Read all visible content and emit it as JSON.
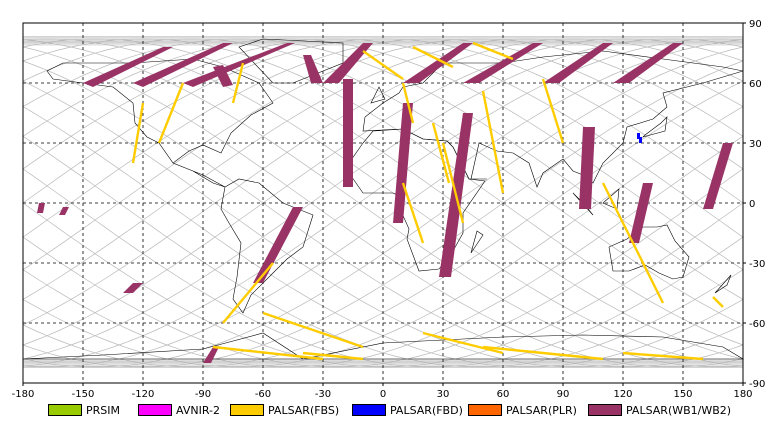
{
  "map": {
    "projection": "equirectangular",
    "background": "#ffffff",
    "lon_range": [
      -180,
      180
    ],
    "lat_range": [
      -90,
      90
    ],
    "x_ticks": [
      "-180",
      "-150",
      "-120",
      "-90",
      "-60",
      "-30",
      "0",
      "30",
      "60",
      "90",
      "120",
      "150",
      "180"
    ],
    "y_ticks": [
      "90",
      "60",
      "30",
      "0",
      "-30",
      "-60",
      "-90"
    ],
    "grid": "dashed black",
    "coastline_color": "#000000",
    "orbit_track_color": "#b9b9b9"
  },
  "legend": [
    {
      "label": "PRSIM",
      "color": "#99cc00"
    },
    {
      "label": "AVNIR-2",
      "color": "#ff00ff"
    },
    {
      "label": "PALSAR(FBS)",
      "color": "#ffcc00"
    },
    {
      "label": "PALSAR(FBD)",
      "color": "#0000ff"
    },
    {
      "label": "PALSAR(PLR)",
      "color": "#ff6600"
    },
    {
      "label": "PALSAR(WB1/WB2)",
      "color": "#993366"
    }
  ],
  "coverage": {
    "wb_swaths": [
      [
        [
          -110,
          78
        ],
        [
          -150,
          60
        ],
        [
          -145,
          58
        ],
        [
          -105,
          78
        ]
      ],
      [
        [
          -80,
          80
        ],
        [
          -125,
          60
        ],
        [
          -120,
          58
        ],
        [
          -75,
          80
        ]
      ],
      [
        [
          -48,
          80
        ],
        [
          -100,
          60
        ],
        [
          -95,
          58
        ],
        [
          -44,
          80
        ]
      ],
      [
        [
          -40,
          74
        ],
        [
          -36,
          60
        ],
        [
          -30,
          60
        ],
        [
          -36,
          74
        ]
      ],
      [
        [
          -10,
          80
        ],
        [
          -30,
          60
        ],
        [
          -22,
          60
        ],
        [
          -5,
          80
        ]
      ],
      [
        [
          40,
          80
        ],
        [
          10,
          60
        ],
        [
          18,
          60
        ],
        [
          45,
          80
        ]
      ],
      [
        [
          75,
          80
        ],
        [
          40,
          60
        ],
        [
          48,
          60
        ],
        [
          80,
          80
        ]
      ],
      [
        [
          110,
          80
        ],
        [
          80,
          60
        ],
        [
          88,
          60
        ],
        [
          115,
          80
        ]
      ],
      [
        [
          145,
          80
        ],
        [
          115,
          60
        ],
        [
          123,
          60
        ],
        [
          150,
          80
        ]
      ],
      [
        [
          -85,
          68
        ],
        [
          -80,
          58
        ],
        [
          -75,
          59
        ],
        [
          -80,
          69
        ]
      ],
      [
        [
          -20,
          62
        ],
        [
          -20,
          8
        ],
        [
          -15,
          8
        ],
        [
          -15,
          62
        ]
      ],
      [
        [
          10,
          50
        ],
        [
          5,
          -10
        ],
        [
          10,
          -10
        ],
        [
          15,
          50
        ]
      ],
      [
        [
          40,
          45
        ],
        [
          28,
          -37
        ],
        [
          34,
          -37
        ],
        [
          45,
          45
        ]
      ],
      [
        [
          -45,
          -2
        ],
        [
          -65,
          -40
        ],
        [
          -60,
          -40
        ],
        [
          -40,
          -2
        ]
      ],
      [
        [
          100,
          38
        ],
        [
          98,
          -3
        ],
        [
          104,
          -3
        ],
        [
          106,
          38
        ]
      ],
      [
        [
          130,
          10
        ],
        [
          123,
          -20
        ],
        [
          128,
          -20
        ],
        [
          135,
          10
        ]
      ],
      [
        [
          170,
          30
        ],
        [
          160,
          -3
        ],
        [
          165,
          -3
        ],
        [
          175,
          30
        ]
      ],
      [
        [
          -125,
          -40
        ],
        [
          -130,
          -45
        ],
        [
          -125,
          -45
        ],
        [
          -120,
          -40
        ]
      ],
      [
        [
          -85,
          -72
        ],
        [
          -90,
          -80
        ],
        [
          -86,
          -80
        ],
        [
          -82,
          -72
        ]
      ],
      [
        [
          -160,
          -2
        ],
        [
          -162,
          -6
        ],
        [
          -159,
          -6
        ],
        [
          -157,
          -2
        ]
      ],
      [
        [
          -172,
          0
        ],
        [
          -173,
          -5
        ],
        [
          -170,
          -5
        ],
        [
          -169,
          0
        ]
      ]
    ],
    "fbs_tracks": [
      [
        [
          -120,
          50
        ],
        [
          -125,
          20
        ]
      ],
      [
        [
          -100,
          60
        ],
        [
          -112,
          30
        ]
      ],
      [
        [
          -70,
          70
        ],
        [
          -75,
          50
        ]
      ],
      [
        [
          -55,
          -30
        ],
        [
          -80,
          -60
        ]
      ],
      [
        [
          -60,
          -55
        ],
        [
          -10,
          -72
        ]
      ],
      [
        [
          -10,
          76
        ],
        [
          10,
          62
        ]
      ],
      [
        [
          15,
          78
        ],
        [
          35,
          68
        ]
      ],
      [
        [
          45,
          80
        ],
        [
          65,
          72
        ]
      ],
      [
        [
          10,
          60
        ],
        [
          15,
          40
        ]
      ],
      [
        [
          25,
          40
        ],
        [
          33,
          10
        ]
      ],
      [
        [
          50,
          56
        ],
        [
          60,
          5
        ]
      ],
      [
        [
          80,
          62
        ],
        [
          90,
          30
        ]
      ],
      [
        [
          10,
          10
        ],
        [
          20,
          -20
        ]
      ],
      [
        [
          30,
          30
        ],
        [
          40,
          -10
        ]
      ],
      [
        [
          110,
          10
        ],
        [
          140,
          -50
        ]
      ],
      [
        [
          20,
          -65
        ],
        [
          60,
          -75
        ]
      ],
      [
        [
          50,
          -72
        ],
        [
          110,
          -78
        ]
      ],
      [
        [
          120,
          -75
        ],
        [
          160,
          -78
        ]
      ],
      [
        [
          -85,
          -72
        ],
        [
          -30,
          -78
        ]
      ],
      [
        [
          -40,
          -75
        ],
        [
          -10,
          -78
        ]
      ],
      [
        [
          165,
          -47
        ],
        [
          170,
          -52
        ]
      ]
    ],
    "fbd_marks": [
      [
        127,
        35
      ],
      [
        128,
        33
      ]
    ]
  }
}
